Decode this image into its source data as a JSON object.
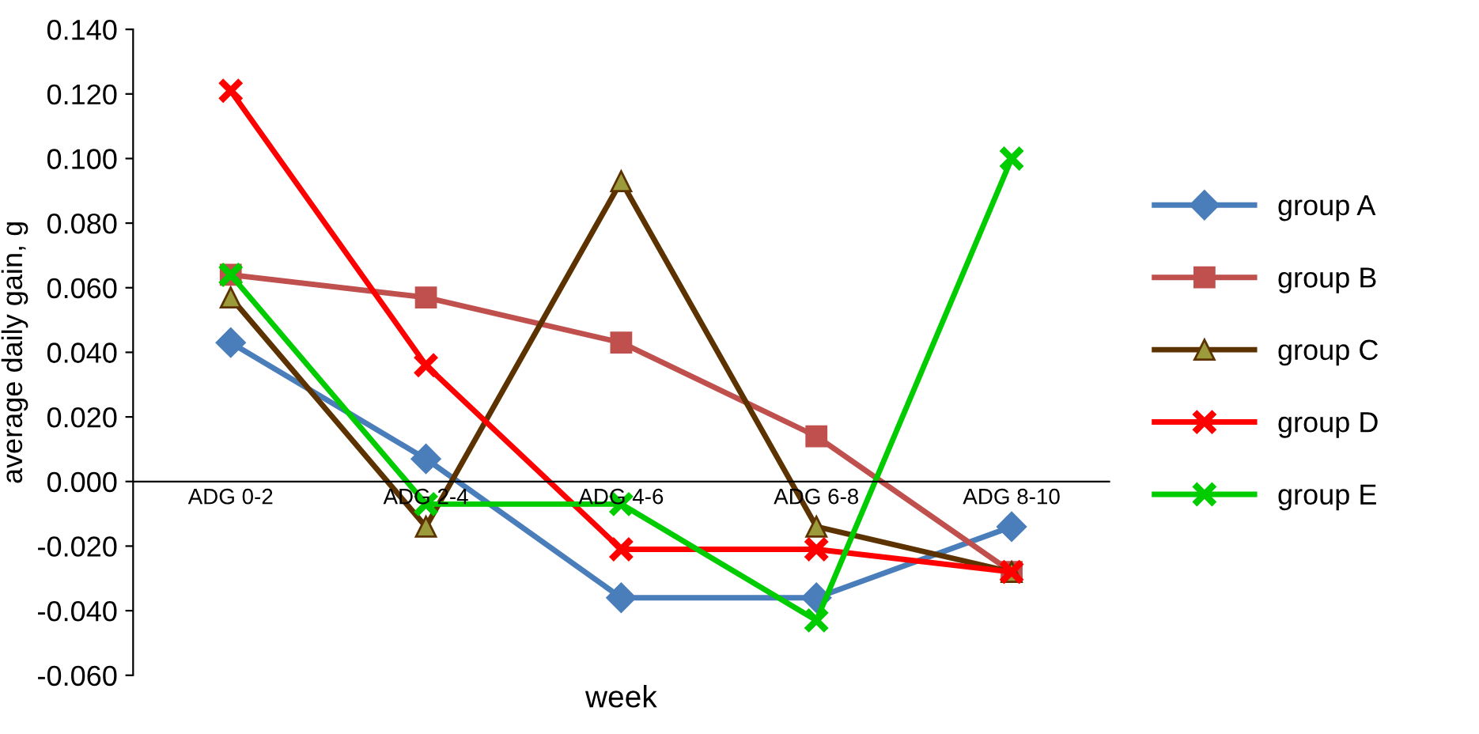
{
  "chart_data": {
    "type": "line",
    "xlabel": "week",
    "ylabel": "average daily gain, g",
    "categories": [
      "ADG 0-2",
      "ADG 2-4",
      "ADG 4-6",
      "ADG 6-8",
      "ADG 8-10"
    ],
    "series": [
      {
        "name": "group A",
        "color": "#4a7ebb",
        "marker": "diamond",
        "values": [
          0.043,
          0.007,
          -0.036,
          -0.036,
          -0.014
        ]
      },
      {
        "name": "group B",
        "color": "#c0504d",
        "marker": "square",
        "values": [
          0.064,
          0.057,
          0.043,
          0.014,
          -0.028
        ]
      },
      {
        "name": "group C",
        "color": "#5c3300",
        "marker": "triangle",
        "values": [
          0.057,
          -0.014,
          0.093,
          -0.014,
          -0.028
        ]
      },
      {
        "name": "group D",
        "color": "#ff0000",
        "marker": "cross",
        "values": [
          0.121,
          0.036,
          -0.021,
          -0.021,
          -0.028
        ]
      },
      {
        "name": "group E",
        "color": "#00cc00",
        "marker": "cross",
        "values": [
          0.064,
          -0.007,
          -0.007,
          -0.043,
          0.1
        ]
      }
    ],
    "ylim": [
      -0.06,
      0.14
    ],
    "yticks": [
      {
        "value": -0.06,
        "label": "-0.060"
      },
      {
        "value": -0.04,
        "label": "-0.040"
      },
      {
        "value": -0.02,
        "label": "-0.020"
      },
      {
        "value": 0,
        "label": "0.000"
      },
      {
        "value": 0.02,
        "label": "0.020"
      },
      {
        "value": 0.04,
        "label": "0.040"
      },
      {
        "value": 0.06,
        "label": "0.060"
      },
      {
        "value": 0.08,
        "label": "0.080"
      },
      {
        "value": 0.1,
        "label": "0.100"
      },
      {
        "value": 0.12,
        "label": "0.120"
      },
      {
        "value": 0.14,
        "label": "0.140"
      }
    ],
    "grid": false,
    "legend": "right",
    "line_style": "solid"
  }
}
